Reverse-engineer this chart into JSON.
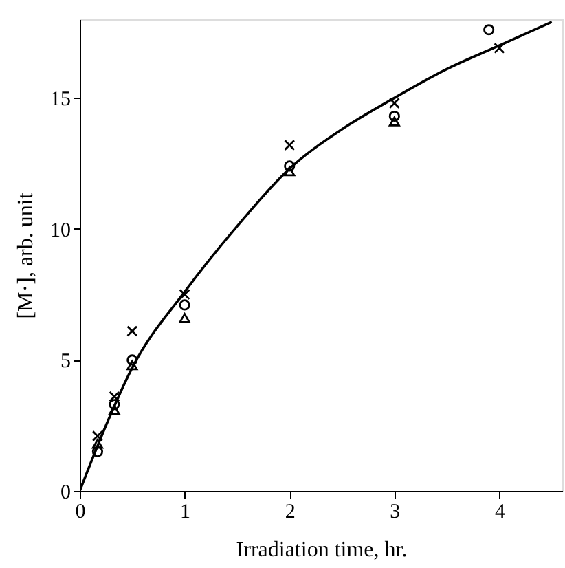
{
  "chart_data": {
    "type": "scatter",
    "xlabel": "Irradiation time, hr.",
    "ylabel": "[M·], arb. unit",
    "xlim": [
      0,
      4.6
    ],
    "ylim": [
      0,
      18
    ],
    "xticks": [
      0,
      1,
      2,
      3,
      4
    ],
    "yticks": [
      0,
      5,
      10,
      15
    ],
    "grid": false,
    "series": [
      {
        "marker": "cross",
        "color": "#000000",
        "x": [
          0.17,
          0.33,
          0.5,
          1.0,
          2.0,
          3.0,
          4.0
        ],
        "values": [
          2.1,
          3.6,
          6.1,
          7.5,
          13.2,
          14.8,
          16.9
        ]
      },
      {
        "marker": "circle",
        "color": "#000000",
        "x": [
          0.17,
          0.33,
          0.5,
          1.0,
          2.0,
          3.0,
          3.9
        ],
        "values": [
          1.5,
          3.3,
          5.0,
          7.1,
          12.4,
          14.3,
          17.6
        ]
      },
      {
        "marker": "triangle",
        "color": "#000000",
        "x": [
          0.17,
          0.33,
          0.5,
          1.0,
          2.0,
          3.0
        ],
        "values": [
          1.8,
          3.1,
          4.8,
          6.6,
          12.2,
          14.1
        ]
      },
      {
        "type": "line",
        "line_style": "solid",
        "color": "#000000",
        "x": [
          0,
          0.25,
          0.5,
          1,
          1.5,
          2,
          2.5,
          3,
          3.5,
          4,
          4.5
        ],
        "values": [
          0,
          2.5,
          4.7,
          7.6,
          10.1,
          12.3,
          13.8,
          15.0,
          16.1,
          17.0,
          17.9
        ]
      }
    ]
  }
}
